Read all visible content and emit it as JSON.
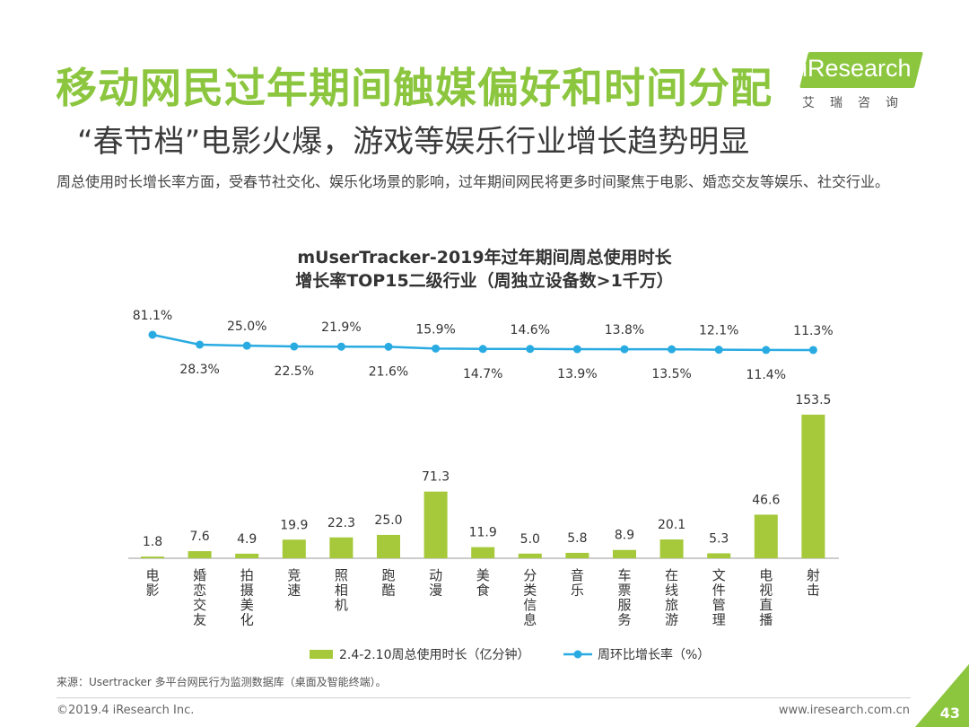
{
  "header": {
    "title": "移动网民过年期间触媒偏好和时间分配",
    "subtitle": "“春节档”电影火爆，游戏等娱乐行业增长趋势明显",
    "description": "周总使用时长增长率方面，受春节社交化、娱乐化场景的影响，过年期间网民将更多时间聚焦于电影、婚恋交友等娱乐、社交行业。"
  },
  "logo": {
    "name": "iResearch",
    "cn": "艾瑞咨询"
  },
  "chart_titles": {
    "line1": "mUserTracker-2019年过年期间周总使用时长",
    "line2": "增长率TOP15二级行业（周独立设备数>1千万）"
  },
  "chart_data": {
    "type": "bar+line",
    "categories": [
      "电影",
      "婚恋交友",
      "拍摄美化",
      "竞速",
      "照相机",
      "跑酷",
      "动漫",
      "美食",
      "分类信息",
      "音乐",
      "车票服务",
      "在线旅游",
      "文件管理",
      "电视直播",
      "射击"
    ],
    "series": [
      {
        "name": "2.4-2.10周总使用时长（亿分钟）",
        "type": "bar",
        "values": [
          1.8,
          7.6,
          4.9,
          19.9,
          22.3,
          25.0,
          71.3,
          11.9,
          5.0,
          5.8,
          8.9,
          20.1,
          5.3,
          46.6,
          153.5
        ],
        "labels": [
          "1.8",
          "7.6",
          "4.9",
          "19.9",
          "22.3",
          "25.0",
          "71.3",
          "11.9",
          "5.0",
          "5.8",
          "8.9",
          "20.1",
          "5.3",
          "46.6",
          "153.5"
        ],
        "color": "#a5c93a"
      },
      {
        "name": "周环比增长率（%）",
        "type": "line",
        "values": [
          81.1,
          28.3,
          25.0,
          22.5,
          21.9,
          21.6,
          15.9,
          14.7,
          14.6,
          13.9,
          13.8,
          13.5,
          12.1,
          11.4,
          11.3
        ],
        "labels": [
          "81.1%",
          "28.3%",
          "25.0%",
          "22.5%",
          "21.9%",
          "21.6%",
          "15.9%",
          "14.7%",
          "14.6%",
          "13.9%",
          "13.8%",
          "13.5%",
          "12.1%",
          "11.4%",
          "11.3%"
        ],
        "color": "#29abe2"
      }
    ],
    "ylim_bar": [
      0,
      160
    ]
  },
  "footer": {
    "source": "来源：Usertracker 多平台网民行为监测数据库（桌面及智能终端）。",
    "copyright": "©2019.4 iResearch Inc.",
    "website": "www.iresearch.com.cn",
    "page": "43"
  },
  "colors": {
    "accent": "#8cc63f",
    "bar": "#a5c93a",
    "line": "#29abe2"
  }
}
